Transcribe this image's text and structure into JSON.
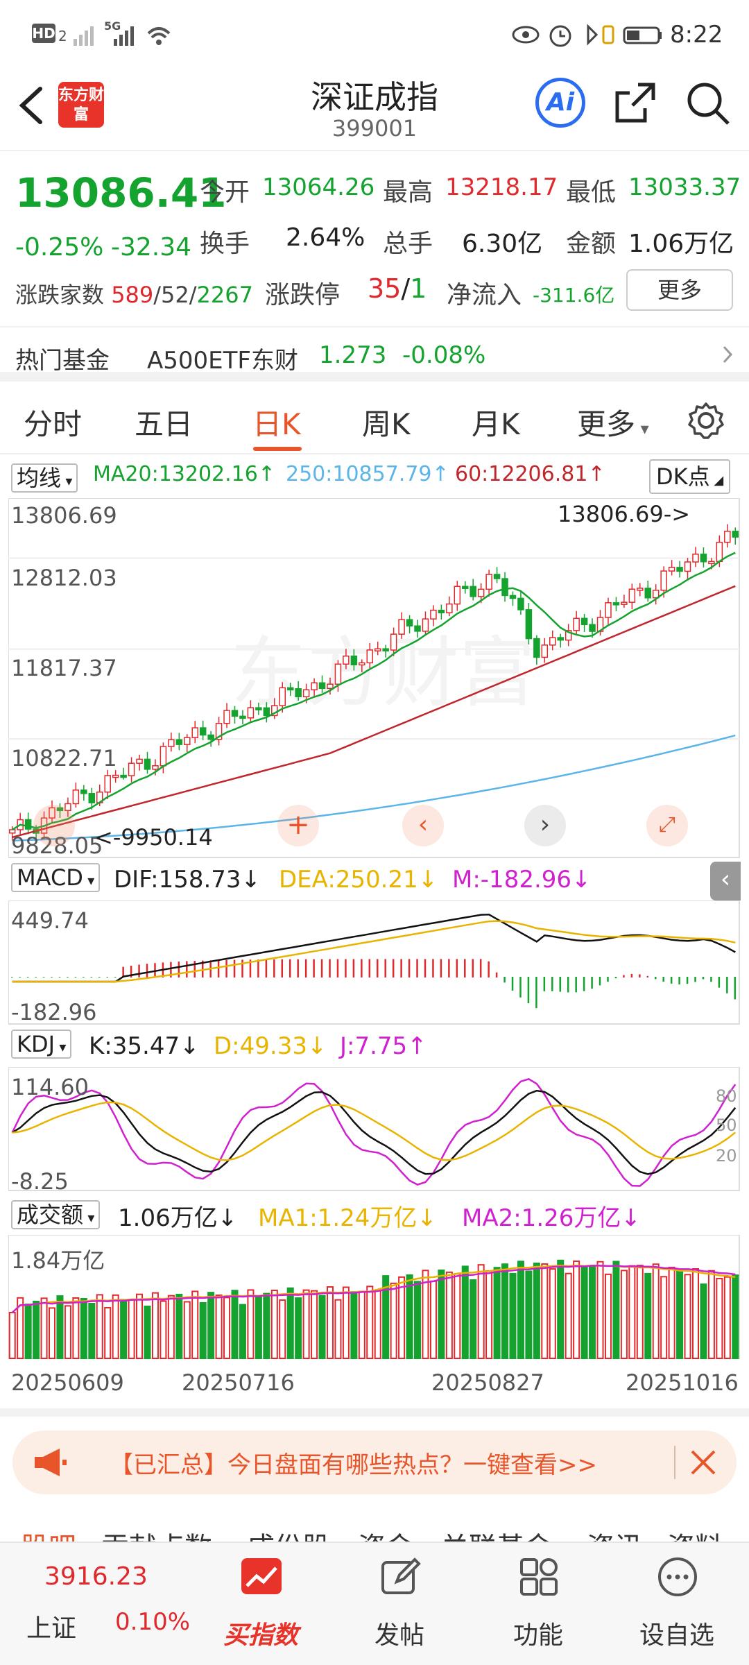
{
  "status_bar": {
    "left_icons": [
      "HD",
      "2",
      "5G"
    ],
    "time": "8:22"
  },
  "header": {
    "title": "深证成指",
    "code": "399001",
    "logo_text": "东方财富",
    "ai_label": "Ai"
  },
  "quote": {
    "price": "13086.41",
    "change_pct": "-0.25%",
    "change": "-32.34",
    "open_label": "今开",
    "open": "13064.26",
    "high_label": "最高",
    "high": "13218.17",
    "low_label": "最低",
    "low": "13033.37",
    "turnover_label": "换手",
    "turnover": "2.64%",
    "volume_label": "总手",
    "volume": "6.30亿",
    "amount_label": "金额",
    "amount": "1.06万亿",
    "breadth_label": "涨跌家数",
    "breadth_up": "589",
    "breadth_sep1": "/",
    "breadth_flat": "52",
    "breadth_sep2": "/",
    "breadth_down": "2267",
    "limit_label": "涨跌停",
    "limit_up": "35",
    "limit_sep": "/",
    "limit_down": "1",
    "netflow_label": "净流入",
    "netflow": "-311.6亿",
    "more_button": "更多"
  },
  "fund_bar": {
    "label": "热门基金",
    "name": "A500ETF东财",
    "price": "1.273",
    "change": "-0.08%"
  },
  "tabs": [
    "分时",
    "五日",
    "日K",
    "周K",
    "月K",
    "更多"
  ],
  "active_tab": "日K",
  "ma_bar": {
    "select": "均线",
    "ma20": "MA20:13202.16",
    "ma250": "250:10857.79",
    "ma60": "60:12206.81",
    "dk_button": "DK点"
  },
  "kline": {
    "y_labels": [
      "13806.69",
      "12812.03",
      "11817.37",
      "10822.71",
      "9828.05"
    ],
    "max_annotation": "13806.69->",
    "min_annotation": "<-9950.14",
    "watermark": "东方财富"
  },
  "macd": {
    "select": "MACD",
    "dif": "DIF:158.73",
    "dea": "DEA:250.21",
    "m": "M:-182.96",
    "y_max": "449.74",
    "y_min": "-182.96"
  },
  "kdj": {
    "select": "KDJ",
    "k": "K:35.47",
    "d": "D:49.33",
    "j": "J:7.75",
    "y_max": "114.60",
    "y_min": "-8.25",
    "levels": [
      "80",
      "50",
      "20"
    ]
  },
  "volume": {
    "select": "成交额",
    "value": "1.06万亿",
    "ma1": "MA1:1.24万亿",
    "ma2": "MA2:1.26万亿",
    "y_max": "1.84万亿"
  },
  "dates": [
    "20250609",
    "20250716",
    "20250827",
    "20251016"
  ],
  "banner": {
    "text": "【已汇总】今日盘面有哪些热点？一键查看>>"
  },
  "sub_tabs": [
    "股吧",
    "贡献点数",
    "成份股",
    "资金",
    "关联基金",
    "资讯",
    "资料"
  ],
  "bottom_nav": {
    "index_value": "3916.23",
    "index_name": "上证",
    "index_change": "0.10%",
    "items": [
      "买指数",
      "发帖",
      "功能",
      "设自选"
    ]
  },
  "colors": {
    "up": "#e0292d",
    "down": "#14a32f",
    "accent": "#e8552a",
    "ma20": "#14a32f",
    "ma60": "#c0262b",
    "ma250": "#5bb5e8",
    "dea": "#e8b400",
    "j": "#d020d0"
  }
}
